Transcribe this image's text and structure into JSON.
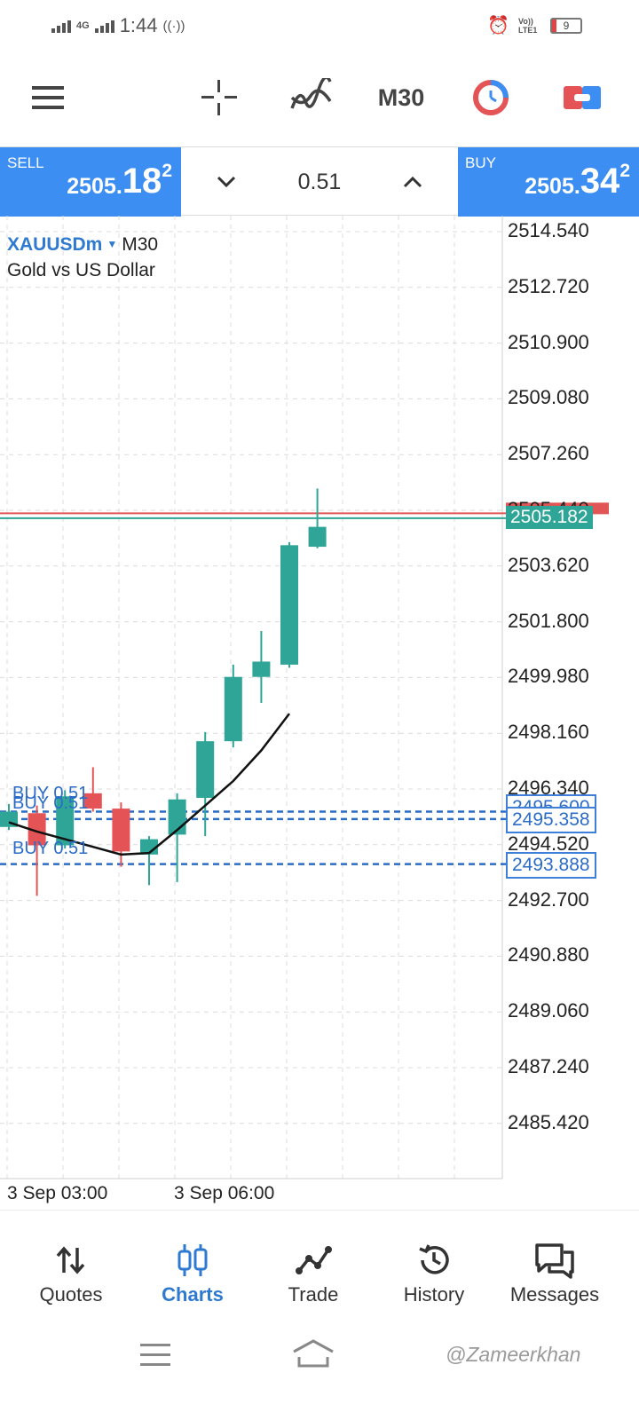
{
  "status": {
    "network": "4G",
    "time": "1:44",
    "volte": "Vo)) LTE1",
    "battery": "9"
  },
  "toolbar": {
    "timeframe": "M30"
  },
  "trade": {
    "sell_label": "SELL",
    "sell_price_main": "2505.",
    "sell_price_big": "18",
    "sell_price_sup": "2",
    "volume": "0.51",
    "buy_label": "BUY",
    "buy_price_main": "2505.",
    "buy_price_big": "34",
    "buy_price_sup": "2"
  },
  "chart": {
    "symbol": "XAUUSDm",
    "timeframe": "M30",
    "description": "Gold vs US Dollar",
    "price_scale": [
      "2514.540",
      "2512.720",
      "2510.900",
      "2509.080",
      "2507.260",
      "2505.440",
      "2503.620",
      "2501.800",
      "2499.980",
      "2498.160",
      "2496.340",
      "2494.520",
      "2492.700",
      "2490.880",
      "2489.060",
      "2487.240",
      "2485.420"
    ],
    "time_labels": [
      "3 Sep 03:00",
      "3 Sep 06:00"
    ],
    "bid_tag": "2505.182",
    "order_tags": [
      "2495.600",
      "2495.358",
      "2493.888"
    ],
    "trade_labels": [
      "BUY 0.51",
      "BUY 0.51",
      "BUY 0.51"
    ],
    "colors": {
      "bull": "#2ea596",
      "bear": "#e45456",
      "order_line": "#2b6cc7",
      "grid": "#dcdcdc",
      "ask_line": "#e05555",
      "bid_line": "#2ea596",
      "moving_average": "#111111"
    }
  },
  "chart_data": {
    "type": "candlestick",
    "symbol": "XAUUSDm",
    "timeframe": "M30",
    "y_axis_ticks": [
      2514.54,
      2512.72,
      2510.9,
      2509.08,
      2507.26,
      2505.44,
      2503.62,
      2501.8,
      2499.98,
      2498.16,
      2496.34,
      2494.52,
      2492.7,
      2490.88,
      2489.06,
      2487.24,
      2485.42
    ],
    "ylim": [
      2485.42,
      2514.54
    ],
    "x_tick_labels": [
      "3 Sep 03:00",
      "3 Sep 06:00"
    ],
    "candles": [
      {
        "open": 2495.1,
        "high": 2495.85,
        "low": 2495.0,
        "close": 2495.6
      },
      {
        "open": 2495.55,
        "high": 2495.8,
        "low": 2492.85,
        "close": 2494.5
      },
      {
        "open": 2494.5,
        "high": 2496.3,
        "low": 2494.4,
        "close": 2496.1
      },
      {
        "open": 2496.2,
        "high": 2497.05,
        "low": 2495.6,
        "close": 2495.7
      },
      {
        "open": 2495.7,
        "high": 2495.9,
        "low": 2493.8,
        "close": 2494.3
      },
      {
        "open": 2494.2,
        "high": 2494.8,
        "low": 2493.2,
        "close": 2494.7
      },
      {
        "open": 2494.85,
        "high": 2496.2,
        "low": 2493.3,
        "close": 2496.0
      },
      {
        "open": 2496.05,
        "high": 2498.2,
        "low": 2494.8,
        "close": 2497.9
      },
      {
        "open": 2497.9,
        "high": 2500.4,
        "low": 2497.7,
        "close": 2500.0
      },
      {
        "open": 2500.0,
        "high": 2501.5,
        "low": 2499.15,
        "close": 2500.5
      },
      {
        "open": 2500.4,
        "high": 2504.4,
        "low": 2500.3,
        "close": 2504.3
      },
      {
        "open": 2504.25,
        "high": 2506.15,
        "low": 2504.2,
        "close": 2504.9
      }
    ],
    "moving_average": [
      2495.25,
      2494.95,
      2494.7,
      2494.45,
      2494.2,
      2494.25,
      2495.0,
      2495.8,
      2496.6,
      2497.6,
      2498.8
    ],
    "bid": 2505.182,
    "ask": 2505.342,
    "orders": [
      {
        "type": "BUY",
        "volume": 0.51,
        "price": 2495.6
      },
      {
        "type": "BUY",
        "volume": 0.51,
        "price": 2495.358
      },
      {
        "type": "BUY",
        "volume": 0.51,
        "price": 2493.888
      }
    ]
  },
  "nav": {
    "items": [
      "Quotes",
      "Charts",
      "Trade",
      "History",
      "Messages"
    ],
    "active": "Charts"
  },
  "watermark": "@Zameerkhan"
}
